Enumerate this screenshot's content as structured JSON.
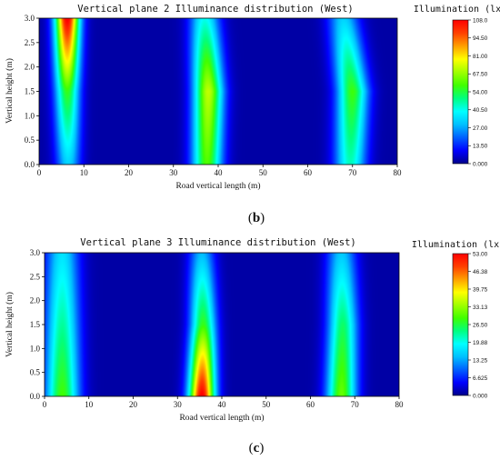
{
  "colorscale": [
    "#00008b",
    "#0000ff",
    "#0060ff",
    "#00c0ff",
    "#00ffff",
    "#00ff80",
    "#40ff00",
    "#a0ff00",
    "#ffff00",
    "#ffa000",
    "#ff4000",
    "#ff0000"
  ],
  "chart_data": [
    {
      "type": "heatmap",
      "title": "Vertical plane 2 Illuminance distribution (West)",
      "xlabel": "Road vertical length (m)",
      "ylabel": "Vertical height (m)",
      "xlim": [
        0,
        80
      ],
      "ylim": [
        0,
        3
      ],
      "xticks": [
        "0",
        "10",
        "20",
        "30",
        "40",
        "50",
        "60",
        "70",
        "80"
      ],
      "yticks": [
        "0.0",
        "0.5",
        "1.0",
        "1.5",
        "2.0",
        "2.5",
        "3.0"
      ],
      "colorbar_title": "Illumination (lx)",
      "colorbar_range": [
        0,
        108
      ],
      "colorbar_ticks": [
        "108.0",
        "94.50",
        "81.00",
        "67.50",
        "54.00",
        "40.50",
        "27.00",
        "13.50",
        "0.000"
      ],
      "caption": "b",
      "hotspots": [
        {
          "x": [
            [
              0,
              6.5
            ],
            [
              1.5,
              6.3
            ],
            [
              3,
              6.3
            ]
          ],
          "a": [
            [
              0,
              30
            ],
            [
              1.5,
              55
            ],
            [
              3,
              108
            ]
          ],
          "w": 1.9
        },
        {
          "x": [
            [
              0,
              37.5
            ],
            [
              1.5,
              37.8
            ],
            [
              3,
              37
            ]
          ],
          "a": [
            [
              0,
              58
            ],
            [
              1.5,
              70
            ],
            [
              3,
              38
            ]
          ],
          "w": 2.3
        },
        {
          "x": [
            [
              0,
              69.5
            ],
            [
              1.5,
              70
            ],
            [
              3,
              68
            ]
          ],
          "a": [
            [
              0,
              42
            ],
            [
              1.5,
              56
            ],
            [
              3,
              30
            ]
          ],
          "w": 2.4
        }
      ]
    },
    {
      "type": "heatmap",
      "title": "Vertical plane 3 Illuminance distribution (West)",
      "xlabel": "Road vertical length (m)",
      "ylabel": "Vertical height (m)",
      "xlim": [
        0,
        80
      ],
      "ylim": [
        0,
        3
      ],
      "xticks": [
        "0",
        "10",
        "20",
        "30",
        "40",
        "50",
        "60",
        "70",
        "80"
      ],
      "yticks": [
        "0.0",
        "0.5",
        "1.0",
        "1.5",
        "2.0",
        "2.5",
        "3.0"
      ],
      "colorbar_title": "Illumination (lx)",
      "colorbar_range": [
        0,
        53
      ],
      "colorbar_ticks": [
        "53.00",
        "46.38",
        "39.75",
        "33.13",
        "26.50",
        "19.88",
        "13.25",
        "6.625",
        "0.000"
      ],
      "caption": "c",
      "hotspots": [
        {
          "x": [
            [
              0,
              4
            ],
            [
              1.5,
              4
            ],
            [
              3,
              4
            ]
          ],
          "a": [
            [
              0,
              28
            ],
            [
              1.5,
              22
            ],
            [
              3,
              16
            ]
          ],
          "w": 2.6
        },
        {
          "x": [
            [
              0,
              35.5
            ],
            [
              1.5,
              35.8
            ],
            [
              3,
              35.5
            ]
          ],
          "a": [
            [
              0,
              53
            ],
            [
              1.5,
              27
            ],
            [
              3,
              13
            ]
          ],
          "w": 2.0
        },
        {
          "x": [
            [
              0,
              67
            ],
            [
              1.5,
              67.3
            ],
            [
              3,
              67
            ]
          ],
          "a": [
            [
              0,
              30
            ],
            [
              1.5,
              24
            ],
            [
              3,
              14
            ]
          ],
          "w": 2.3
        }
      ]
    }
  ]
}
